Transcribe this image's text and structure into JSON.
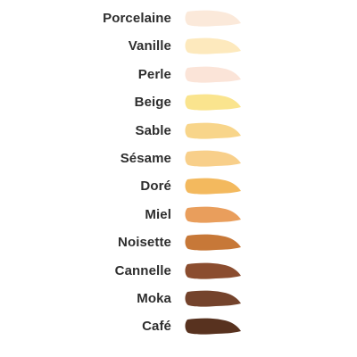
{
  "shades": [
    {
      "name": "Porcelaine",
      "color": "#fbe9da"
    },
    {
      "name": "Vanille",
      "color": "#fde9bd"
    },
    {
      "name": "Perle",
      "color": "#fbe4d8"
    },
    {
      "name": "Beige",
      "color": "#fae48e"
    },
    {
      "name": "Sable",
      "color": "#f8d58a"
    },
    {
      "name": "Sésame",
      "color": "#f8cf8a"
    },
    {
      "name": "Doré",
      "color": "#f3b95e"
    },
    {
      "name": "Miel",
      "color": "#e99e5c"
    },
    {
      "name": "Noisette",
      "color": "#c77838"
    },
    {
      "name": "Cannelle",
      "color": "#8b4d2f"
    },
    {
      "name": "Moka",
      "color": "#74432c"
    },
    {
      "name": "Café",
      "color": "#58321f"
    }
  ]
}
